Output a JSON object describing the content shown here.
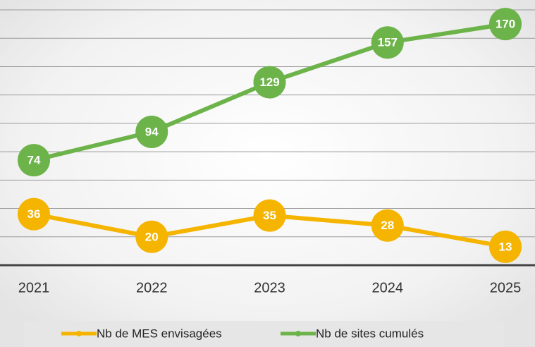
{
  "chart_data": {
    "type": "line",
    "categories": [
      "2021",
      "2022",
      "2023",
      "2024",
      "2025"
    ],
    "series": [
      {
        "name": "Nb de MES envisagées",
        "color": "#f5b400",
        "values": [
          36,
          20,
          35,
          28,
          13
        ]
      },
      {
        "name": "Nb de sites cumulés",
        "color": "#6cb34a",
        "values": [
          74,
          94,
          129,
          157,
          170
        ]
      }
    ],
    "ylim": [
      0,
      180
    ],
    "yticks": [
      0,
      20,
      40,
      60,
      80,
      100,
      120,
      140,
      160,
      180
    ],
    "grid": true
  }
}
